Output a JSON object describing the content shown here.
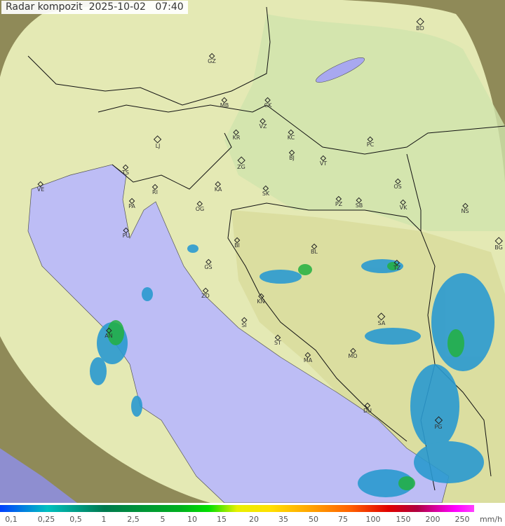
{
  "title": {
    "label": "Radar kompozit",
    "date": "2025-10-02",
    "time": "07:40"
  },
  "colors": {
    "sea": "#bdbdf5",
    "land": "#e7ecb0",
    "outside": "#8a8a5a",
    "echo_low": "#1aa0d0",
    "echo_mid": "#1ab040"
  },
  "cities": [
    "GZ",
    "BD",
    "MB",
    "CK",
    "VZ",
    "KR",
    "KC",
    "PC",
    "LJ",
    "ZG",
    "BJ",
    "VT",
    "TS",
    "VE",
    "KA",
    "SK",
    "OS",
    "RI",
    "PA",
    "OG",
    "PZ",
    "SB",
    "VK",
    "NS",
    "PU",
    "BI",
    "BL",
    "BG",
    "GS",
    "TZ",
    "ZD",
    "KN",
    "SA",
    "SI",
    "AN",
    "ST",
    "MO",
    "MA",
    "DU",
    "PG"
  ],
  "legend": {
    "unit": "mm/h",
    "ticks": [
      "0,1",
      "0,25",
      "0,5",
      "1",
      "2,5",
      "5",
      "10",
      "15",
      "20",
      "35",
      "50",
      "75",
      "100",
      "150",
      "200",
      "250"
    ]
  }
}
